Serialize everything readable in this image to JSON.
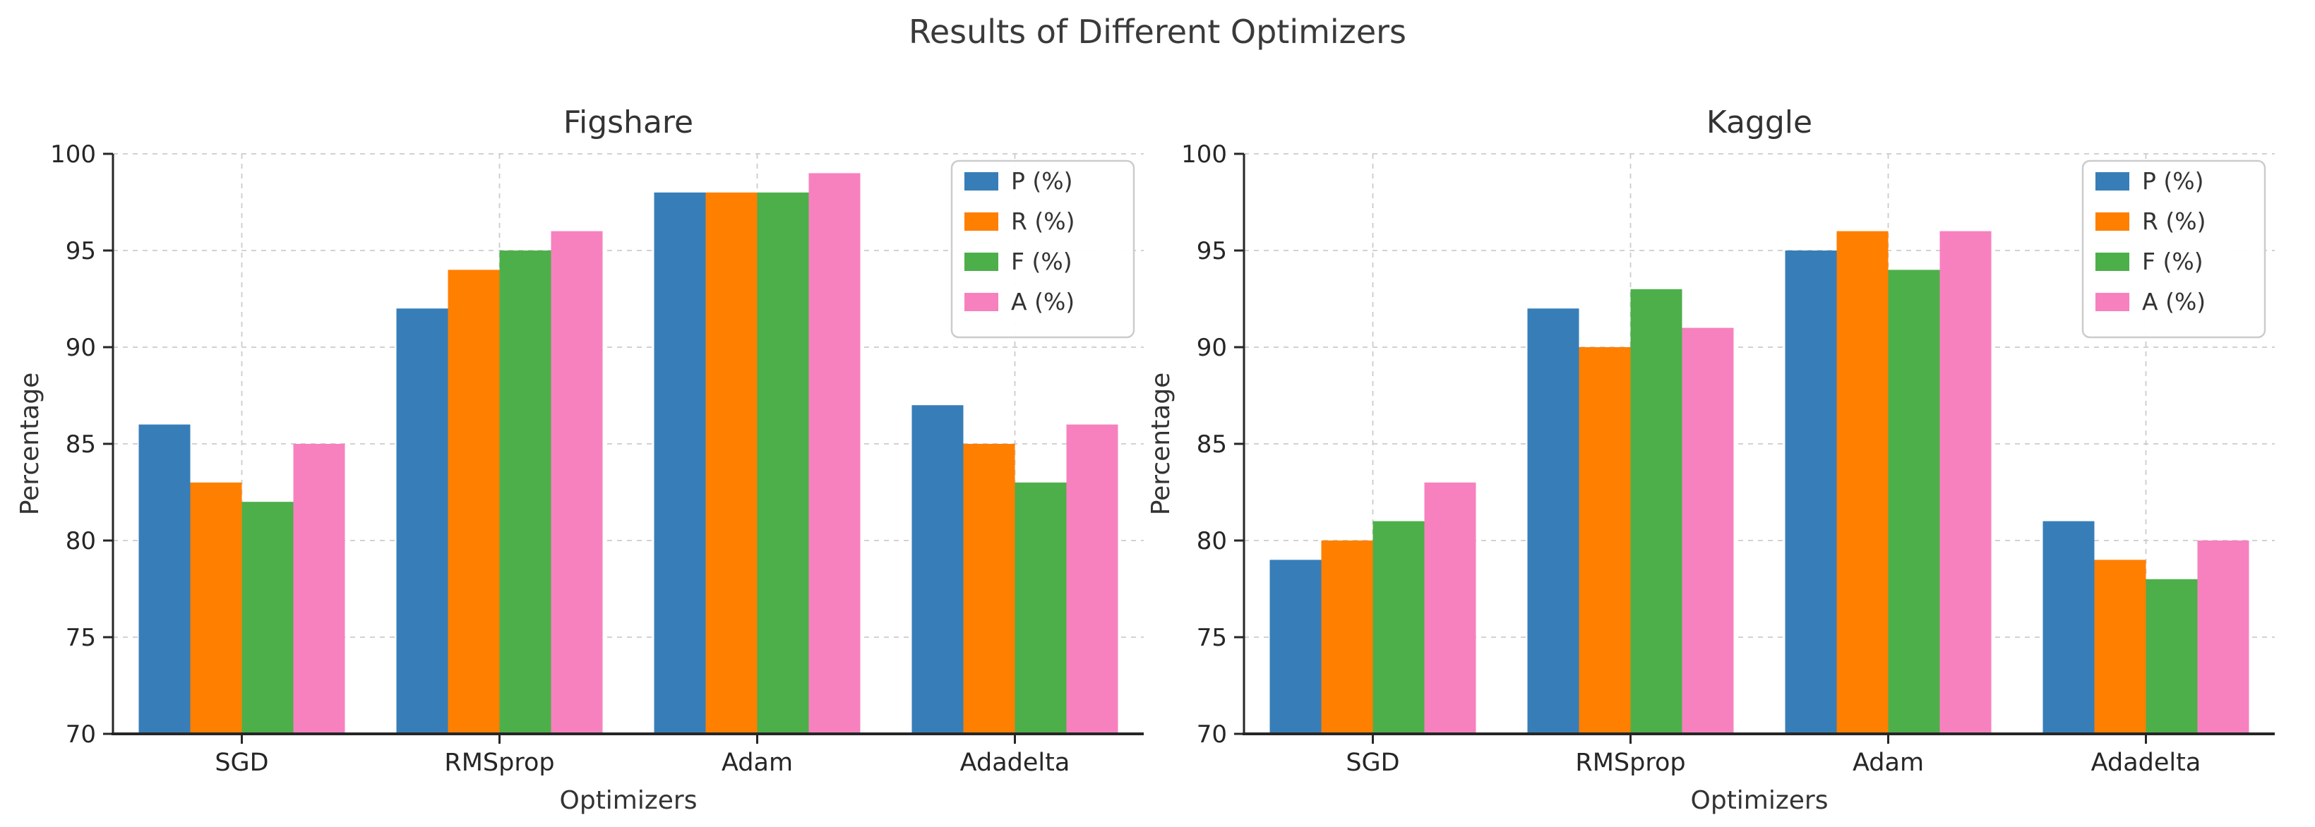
{
  "figure": {
    "title": "Results of Different Optimizers",
    "background": "#ffffff",
    "title_color": "#3a3a3a"
  },
  "style": {
    "axis_color": "#262626",
    "tick_label_color": "#262626",
    "text_color": "#333333",
    "grid_color": "#cccccc",
    "legend_border_color": "#cccccc",
    "legend_background": "#ffffff"
  },
  "chart_data": [
    {
      "type": "bar",
      "title": "Figshare",
      "xlabel": "Optimizers",
      "ylabel": "Percentage",
      "categories": [
        "SGD",
        "RMSprop",
        "Adam",
        "Adadelta"
      ],
      "series": [
        {
          "name": "P (%)",
          "color": "#377eb8",
          "values": [
            86,
            92,
            98,
            87
          ]
        },
        {
          "name": "R (%)",
          "color": "#ff7f00",
          "values": [
            83,
            94,
            98,
            85
          ]
        },
        {
          "name": "F (%)",
          "color": "#4daf4a",
          "values": [
            82,
            95,
            98,
            83
          ]
        },
        {
          "name": "A (%)",
          "color": "#f781bf",
          "values": [
            85,
            96,
            99,
            86
          ]
        }
      ],
      "ylim": [
        70,
        100
      ],
      "yticks": [
        70,
        75,
        80,
        85,
        90,
        95,
        100
      ],
      "grid": true,
      "legend_position": "upper right"
    },
    {
      "type": "bar",
      "title": "Kaggle",
      "xlabel": "Optimizers",
      "ylabel": "Percentage",
      "categories": [
        "SGD",
        "RMSprop",
        "Adam",
        "Adadelta"
      ],
      "series": [
        {
          "name": "P (%)",
          "color": "#377eb8",
          "values": [
            79,
            92,
            95,
            81
          ]
        },
        {
          "name": "R (%)",
          "color": "#ff7f00",
          "values": [
            80,
            90,
            96,
            79
          ]
        },
        {
          "name": "F (%)",
          "color": "#4daf4a",
          "values": [
            81,
            93,
            94,
            78
          ]
        },
        {
          "name": "A (%)",
          "color": "#f781bf",
          "values": [
            83,
            91,
            96,
            80
          ]
        }
      ],
      "ylim": [
        70,
        100
      ],
      "yticks": [
        70,
        75,
        80,
        85,
        90,
        95,
        100
      ],
      "grid": true,
      "legend_position": "upper right"
    }
  ]
}
